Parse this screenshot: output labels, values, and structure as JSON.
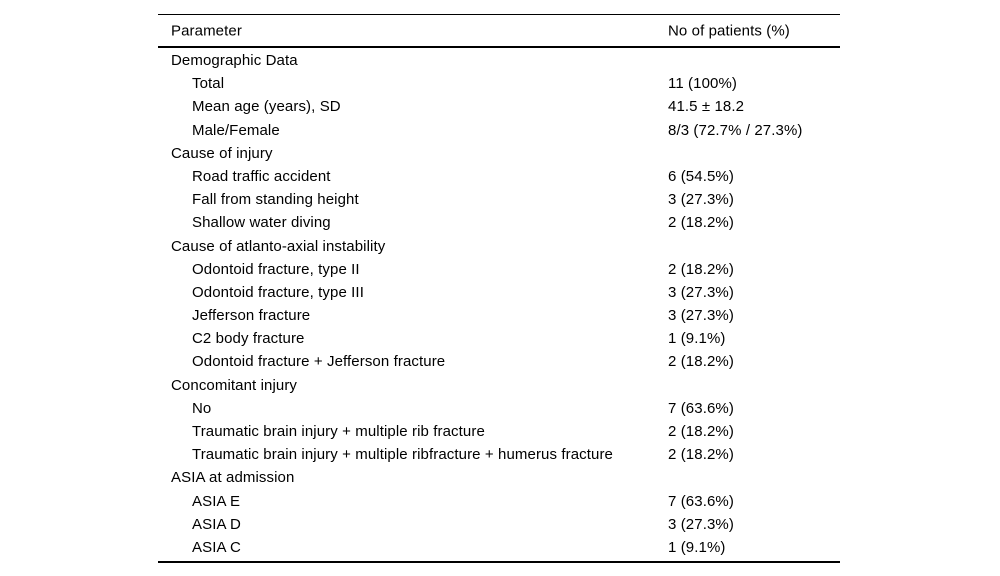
{
  "table": {
    "columns": {
      "parameter": "Parameter",
      "patients": "No of patients (%)"
    },
    "rows": [
      {
        "type": "section",
        "label": "Demographic Data",
        "value": ""
      },
      {
        "type": "item",
        "label": "Total",
        "value": "11 (100%)"
      },
      {
        "type": "item",
        "label": "Mean age (years), SD",
        "value": "41.5 ± 18.2"
      },
      {
        "type": "item",
        "label": "Male/Female",
        "value": "8/3 (72.7% / 27.3%)"
      },
      {
        "type": "section",
        "label": "Cause of injury",
        "value": ""
      },
      {
        "type": "item",
        "label": "Road traffic accident",
        "value": "6 (54.5%)"
      },
      {
        "type": "item",
        "label": "Fall from standing height",
        "value": "3 (27.3%)"
      },
      {
        "type": "item",
        "label": "Shallow water diving",
        "value": "2 (18.2%)"
      },
      {
        "type": "section",
        "label": "Cause of atlanto-axial instability",
        "value": ""
      },
      {
        "type": "item",
        "label": "Odontoid fracture, type II",
        "value": "2 (18.2%)"
      },
      {
        "type": "item",
        "label": "Odontoid fracture, type III",
        "value": "3 (27.3%)"
      },
      {
        "type": "item",
        "label": "Jefferson fracture",
        "value": "3 (27.3%)"
      },
      {
        "type": "item",
        "label": "C2 body fracture",
        "value": "1 (9.1%)"
      },
      {
        "type": "item",
        "label": "Odontoid fracture + Jefferson fracture",
        "value": "2 (18.2%)"
      },
      {
        "type": "section",
        "label": "Concomitant injury",
        "value": ""
      },
      {
        "type": "item",
        "label": "No",
        "value": "7 (63.6%)"
      },
      {
        "type": "item",
        "label": "Traumatic brain injury + multiple rib fracture",
        "value": "2 (18.2%)"
      },
      {
        "type": "item",
        "label": "Traumatic brain injury + multiple ribfracture + humerus fracture",
        "value": "2 (18.2%)"
      },
      {
        "type": "section",
        "label": "ASIA at admission",
        "value": ""
      },
      {
        "type": "item",
        "label": "ASIA E",
        "value": "7 (63.6%)"
      },
      {
        "type": "item",
        "label": "ASIA D",
        "value": "3 (27.3%)"
      },
      {
        "type": "item",
        "label": "ASIA C",
        "value": "1 (9.1%)"
      }
    ]
  }
}
